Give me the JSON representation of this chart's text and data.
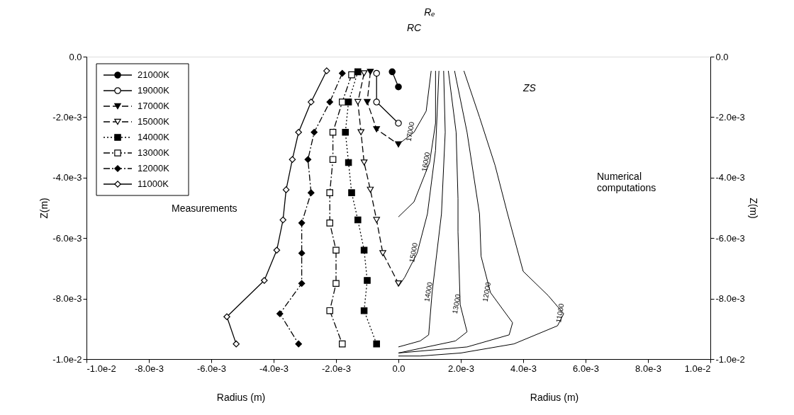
{
  "chart_data": {
    "type": "line",
    "xlabel": "Radius (m)",
    "ylabel": "Z(m)",
    "y2label": "Z(m)",
    "xlim": [
      -0.01,
      0.01
    ],
    "xticks": [
      {
        "value": -0.01,
        "label": "-1.0e-2"
      },
      {
        "value": -0.008,
        "label": "-8.0e-3"
      },
      {
        "value": -0.006,
        "label": "-6.0e-3"
      },
      {
        "value": -0.004,
        "label": "-4.0e-3"
      },
      {
        "value": -0.002,
        "label": "-2.0e-3"
      },
      {
        "value": 0,
        "label": "0.0"
      },
      {
        "value": 0.002,
        "label": "2.0e-3"
      },
      {
        "value": 0.004,
        "label": "4.0e-3"
      },
      {
        "value": 0.006,
        "label": "6.0e-3"
      },
      {
        "value": 0.008,
        "label": "8.0e-3"
      },
      {
        "value": 0.01,
        "label": "1.0e-2"
      }
    ],
    "ylim": [
      -0.01,
      0
    ],
    "yticks": [
      {
        "value": 0,
        "label": "0.0"
      },
      {
        "value": -0.002,
        "label": "-2.0e-3"
      },
      {
        "value": -0.004,
        "label": "-4.0e-3"
      },
      {
        "value": -0.006,
        "label": "-6.0e-3"
      },
      {
        "value": -0.008,
        "label": "-8.0e-3"
      },
      {
        "value": -0.01,
        "label": "-1.0e-2"
      }
    ],
    "y2lim": [
      -0.01,
      0
    ],
    "y2ticks": [
      {
        "value": 0,
        "label": "0.0"
      },
      {
        "value": -0.002,
        "label": "-2.0e-3"
      },
      {
        "value": -0.004,
        "label": "-4.0e-3"
      },
      {
        "value": -0.006,
        "label": "-6.0e-3"
      },
      {
        "value": -0.008,
        "label": "-8.0e-3"
      },
      {
        "value": -0.01,
        "label": "-1.0e-2"
      }
    ],
    "grid": false,
    "legend": "top left",
    "annotations": [
      "Measurements",
      "Numerical\ncomputations",
      "Radius (m)",
      "Rₑ",
      "RC",
      "ZS"
    ],
    "series": [
      {
        "name": "21000K",
        "color": "#000000",
        "colors": [
          "#000000",
          "#000000"
        ],
        "marker": "circle",
        "line_style": "solid",
        "x": [
          -0.0002,
          0.0
        ],
        "values": [
          -0.0005,
          -0.001
        ]
      },
      {
        "name": "19000K",
        "color": "#000000",
        "colors": [
          "#ffffff",
          "#ffffff",
          "#ffffff"
        ],
        "marker": "circle",
        "line_style": "solid",
        "x": [
          -0.0007,
          -0.0007,
          0.0
        ],
        "values": [
          -0.00055,
          -0.0015,
          -0.0022
        ]
      },
      {
        "name": "17000K",
        "color": "#000000",
        "colors": [
          "#000000",
          "#000000",
          "#000000",
          "#000000"
        ],
        "marker": "triangle",
        "line_style": "dashed",
        "x": [
          -0.0009,
          -0.001,
          -0.0007,
          0.0
        ],
        "values": [
          -0.0005,
          -0.0015,
          -0.0024,
          -0.0029
        ]
      },
      {
        "name": "15000K",
        "color": "#000000",
        "colors": [
          "#ffffff",
          "#ffffff",
          "#ffffff",
          "#ffffff",
          "#ffffff",
          "#ffffff",
          "#ffffff",
          "#ffffff"
        ],
        "marker": "triangle",
        "line_style": "dashed",
        "x": [
          -0.0011,
          -0.0013,
          -0.0012,
          -0.0011,
          -0.0009,
          -0.0007,
          -0.0005,
          0.0
        ],
        "values": [
          -0.00055,
          -0.0015,
          -0.0025,
          -0.0035,
          -0.0044,
          -0.0054,
          -0.0065,
          -0.0075
        ]
      },
      {
        "name": "14000K",
        "color": "#000000",
        "colors": [
          "#000000",
          "#000000",
          "#000000",
          "#000000",
          "#000000",
          "#000000",
          "#000000",
          "#000000",
          "#000000",
          "#000000"
        ],
        "marker": "square",
        "line_style": "dotted",
        "x": [
          -0.0013,
          -0.0016,
          -0.0017,
          -0.0016,
          -0.0015,
          -0.0013,
          -0.0011,
          -0.001,
          -0.0011,
          -0.0007
        ],
        "values": [
          -0.0005,
          -0.0015,
          -0.0025,
          -0.0035,
          -0.0045,
          -0.0054,
          -0.0064,
          -0.0074,
          -0.0084,
          -0.0095
        ]
      },
      {
        "name": "13000K",
        "color": "#000000",
        "colors": [
          "#ffffff",
          "#ffffff",
          "#ffffff",
          "#ffffff",
          "#ffffff",
          "#ffffff",
          "#ffffff",
          "#ffffff",
          "#ffffff",
          "#ffffff"
        ],
        "marker": "square",
        "line_style": "dashdot",
        "x": [
          -0.0015,
          -0.0018,
          -0.0021,
          -0.0021,
          -0.0022,
          -0.0022,
          -0.002,
          -0.002,
          -0.0022,
          -0.0018
        ],
        "values": [
          -0.0006,
          -0.0015,
          -0.0025,
          -0.0034,
          -0.0045,
          -0.0055,
          -0.0064,
          -0.0075,
          -0.0084,
          -0.0095
        ]
      },
      {
        "name": "12000K",
        "color": "#000000",
        "colors": [
          "#000000",
          "#000000",
          "#000000",
          "#000000",
          "#000000",
          "#000000",
          "#000000",
          "#000000",
          "#000000",
          "#000000"
        ],
        "marker": "diamond",
        "line_style": "dashdot",
        "x": [
          -0.0018,
          -0.0022,
          -0.0027,
          -0.0029,
          -0.0028,
          -0.0031,
          -0.0031,
          -0.0031,
          -0.0038,
          -0.0032
        ],
        "values": [
          -0.00055,
          -0.0015,
          -0.0025,
          -0.0034,
          -0.0045,
          -0.0055,
          -0.0065,
          -0.0075,
          -0.0085,
          -0.0095
        ]
      },
      {
        "name": "11000K",
        "color": "#000000",
        "colors": [
          "#ffffff",
          "#ffffff",
          "#ffffff",
          "#ffffff",
          "#ffffff",
          "#ffffff",
          "#ffffff",
          "#ffffff",
          "#ffffff",
          "#ffffff"
        ],
        "marker": "diamond",
        "line_style": "solid",
        "x": [
          -0.0023,
          -0.0028,
          -0.0032,
          -0.0034,
          -0.0036,
          -0.0037,
          -0.0039,
          -0.0043,
          -0.0055,
          -0.0052
        ],
        "values": [
          -0.00047,
          -0.0015,
          -0.0025,
          -0.0034,
          -0.0044,
          -0.0054,
          -0.0064,
          -0.0074,
          -0.0086,
          -0.0095
        ]
      },
      {
        "name": "17000",
        "color": "#000000",
        "marker": "none",
        "axis": "y2",
        "x": [
          0.00105,
          0.00089,
          0.0005,
          0.0
        ],
        "values": [
          -0.00047,
          -0.0018,
          -0.0025,
          -0.0029
        ]
      },
      {
        "name": "16000",
        "color": "#000000",
        "marker": "none",
        "axis": "y2",
        "x": [
          0.00119,
          0.00119,
          0.001,
          0.0005,
          0.0
        ],
        "values": [
          -0.00047,
          -0.0022,
          -0.0035,
          -0.0048,
          -0.0053
        ]
      },
      {
        "name": "15000",
        "color": "#000000",
        "marker": "none",
        "axis": "y2",
        "x": [
          0.0013,
          0.00119,
          0.00093,
          0.0006,
          0.0002,
          0.0
        ],
        "values": [
          -0.00047,
          -0.0031,
          -0.0052,
          -0.0065,
          -0.0073,
          -0.0076
        ]
      },
      {
        "name": "14000",
        "color": "#000000",
        "marker": "none",
        "axis": "y2",
        "x": [
          0.00145,
          0.0015,
          0.00138,
          0.00108,
          0.00097,
          0.0007,
          0.0
        ],
        "values": [
          -0.00047,
          -0.0025,
          -0.0052,
          -0.0078,
          -0.0092,
          -0.0094,
          -0.0096
        ]
      },
      {
        "name": "13000",
        "color": "#000000",
        "marker": "none",
        "axis": "y2",
        "x": [
          0.0016,
          0.00185,
          0.00191,
          0.00191,
          0.00198,
          0.0022,
          0.00183,
          0.0
        ],
        "values": [
          -0.00047,
          -0.0025,
          -0.0047,
          -0.0058,
          -0.0082,
          -0.0091,
          -0.0094,
          -0.0098
        ]
      },
      {
        "name": "12000",
        "color": "#000000",
        "marker": "none",
        "axis": "y2",
        "x": [
          0.0018,
          0.0022,
          0.0026,
          0.00265,
          0.00295,
          0.00366,
          0.00355,
          0.0022,
          0.0
        ],
        "values": [
          -0.00047,
          -0.0025,
          -0.0052,
          -0.0066,
          -0.0078,
          -0.0088,
          -0.0092,
          -0.0096,
          -0.0098
        ]
      },
      {
        "name": "11000",
        "color": "#000000",
        "marker": "none",
        "axis": "y2",
        "x": [
          0.0021,
          0.0026,
          0.0031,
          0.0035,
          0.004,
          0.0048,
          0.0053,
          0.0051,
          0.0037,
          0.002,
          0.0007,
          0.0
        ],
        "values": [
          -0.00047,
          -0.002,
          -0.0036,
          -0.0052,
          -0.0071,
          -0.0079,
          -0.0085,
          -0.0089,
          -0.0095,
          -0.0098,
          -0.0099,
          -0.0099
        ]
      }
    ]
  }
}
